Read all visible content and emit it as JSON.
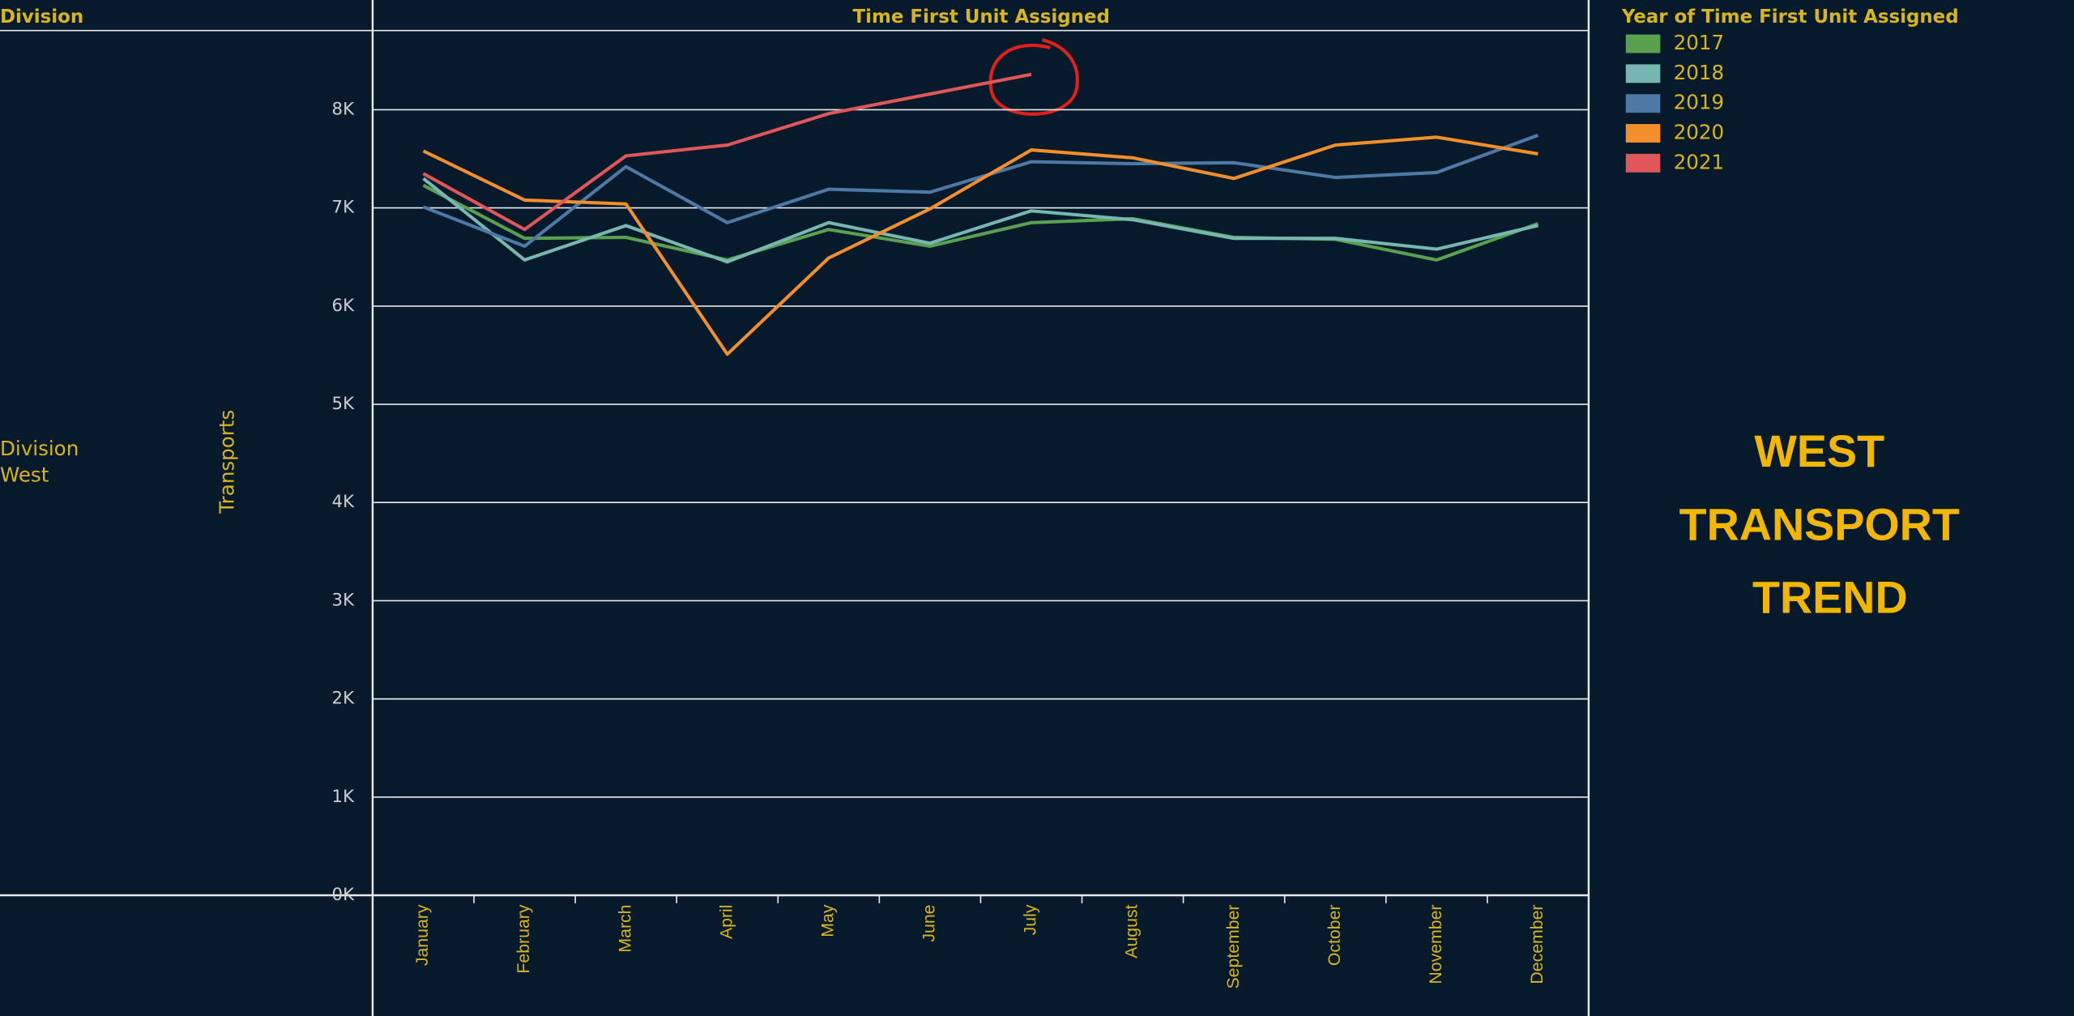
{
  "chart_data": {
    "type": "line",
    "row_header": "Division",
    "title": "Time First Unit Assigned",
    "legend_title": "Year of Time First Unit Assigned",
    "row_label_title": "Division",
    "row_label_value": "West",
    "y_label": "Transports",
    "annotation": [
      "WEST",
      "TRANSPORT",
      "TREND"
    ],
    "categories": [
      "January",
      "February",
      "March",
      "April",
      "May",
      "June",
      "July",
      "August",
      "September",
      "October",
      "November",
      "December"
    ],
    "series": [
      {
        "name": "2017",
        "color": "#59a14f",
        "values": [
          7230,
          6690,
          6700,
          6470,
          6780,
          6610,
          6850,
          6890,
          6700,
          6680,
          6470,
          6840
        ]
      },
      {
        "name": "2018",
        "color": "#76b7b2",
        "values": [
          7300,
          6470,
          6820,
          6450,
          6850,
          6640,
          6970,
          6880,
          6690,
          6690,
          6580,
          6820
        ]
      },
      {
        "name": "2019",
        "color": "#4e79a7",
        "values": [
          7010,
          6610,
          7420,
          6850,
          7190,
          7160,
          7470,
          7450,
          7460,
          7310,
          7360,
          7740
        ]
      },
      {
        "name": "2020",
        "color": "#f28e2b",
        "values": [
          7580,
          7080,
          7040,
          5510,
          6490,
          6990,
          7590,
          7510,
          7300,
          7640,
          7720,
          7550
        ]
      },
      {
        "name": "2021",
        "color": "#e15759",
        "values": [
          7350,
          6780,
          7530,
          7640,
          7960,
          8160,
          8360,
          null,
          null,
          null,
          null,
          null
        ]
      }
    ],
    "ylim": [
      0,
      8820
    ],
    "yticks": [
      {
        "value": 0,
        "label": "0K"
      },
      {
        "value": 1000,
        "label": "1K"
      },
      {
        "value": 2000,
        "label": "2K"
      },
      {
        "value": 3000,
        "label": "3K"
      },
      {
        "value": 4000,
        "label": "4K"
      },
      {
        "value": 5000,
        "label": "5K"
      },
      {
        "value": 6000,
        "label": "6K"
      },
      {
        "value": 7000,
        "label": "7K"
      },
      {
        "value": 8000,
        "label": "8K"
      }
    ],
    "grid": true
  }
}
